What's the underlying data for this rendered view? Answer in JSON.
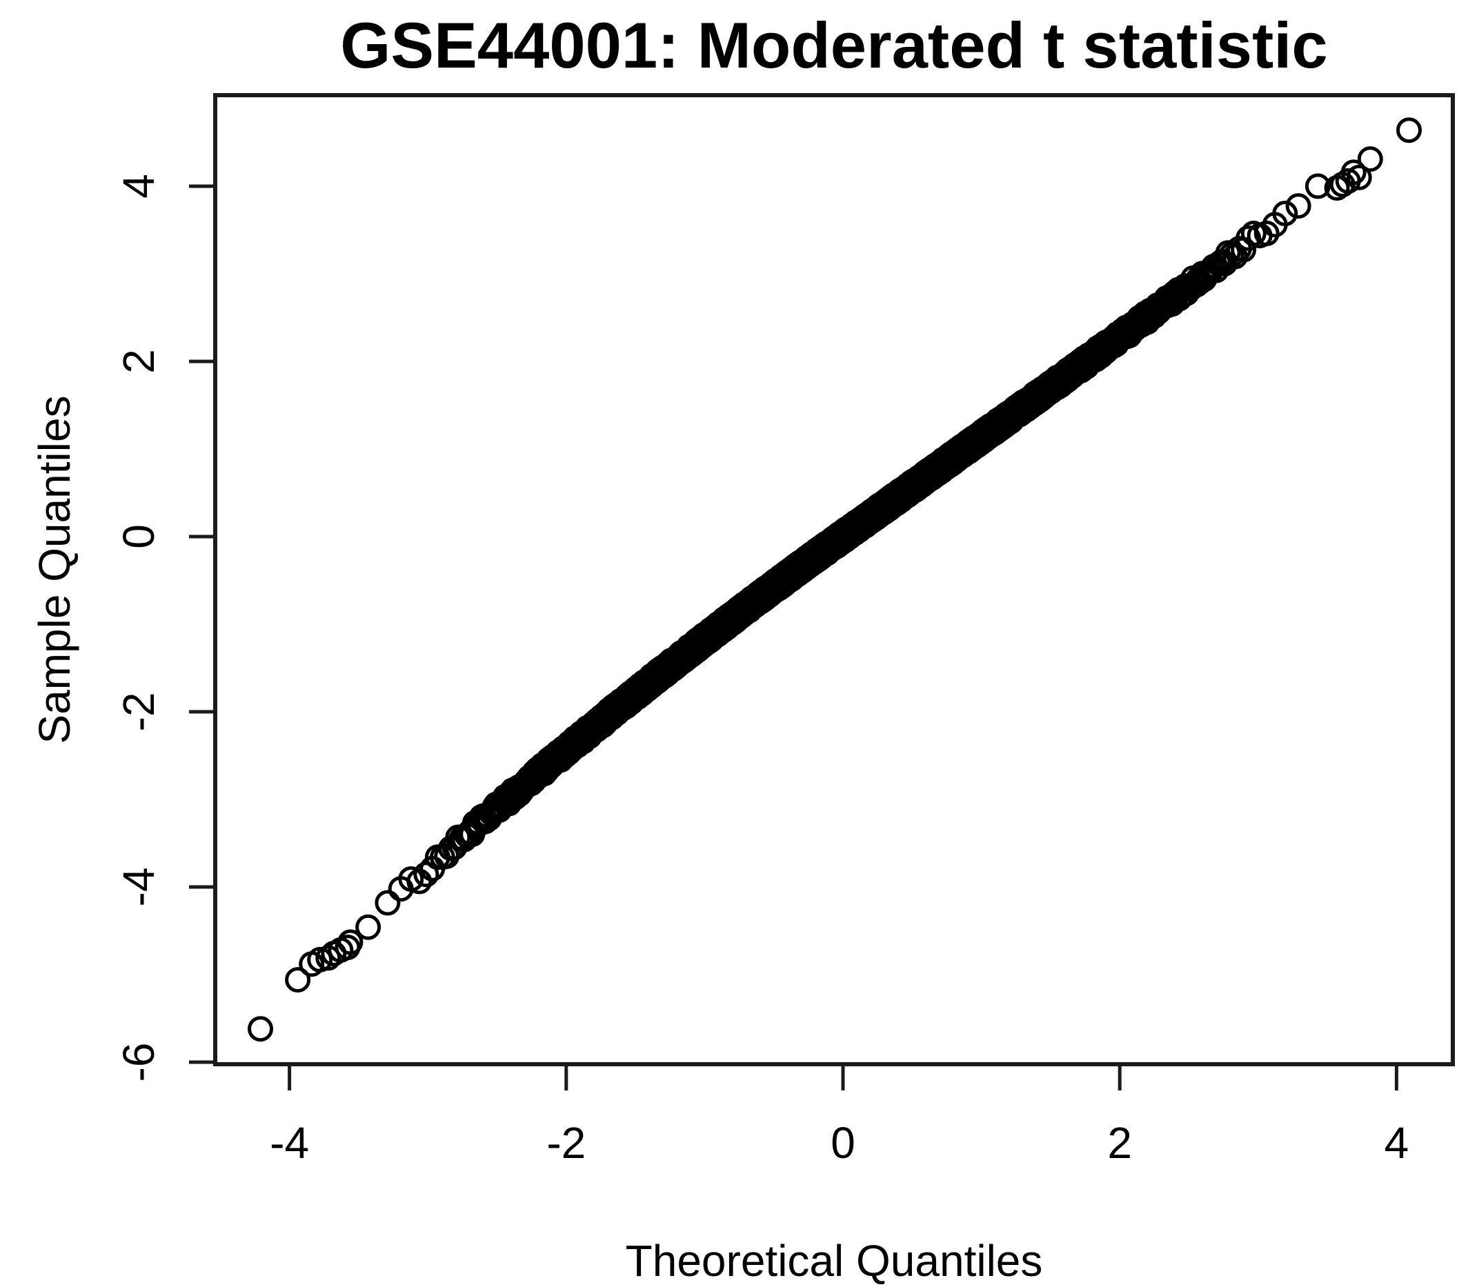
{
  "page": {
    "background": "#ffffff",
    "foreground": "#000000"
  },
  "chart_data": {
    "type": "scatter",
    "subtype": "qqnorm",
    "title": "GSE44001: Moderated t statistic",
    "xlabel": "Theoretical Quantiles",
    "ylabel": "Sample Quantiles",
    "x_ticks": [
      -4,
      -2,
      0,
      2,
      4
    ],
    "y_ticks": [
      4,
      2,
      0,
      -2,
      -4,
      -6
    ],
    "xlim": [
      -4.54,
      4.41
    ],
    "ylim": [
      -6.02,
      5.04
    ],
    "grid": false,
    "legend": null,
    "marker": {
      "shape": "open-circle",
      "color": "#000000",
      "radius_px": 16,
      "stroke_px": 5
    },
    "dense_band": {
      "comment": "thousands of overlapping open circles forming a near-straight QQ line through (0,0)",
      "n_points": 5000,
      "x_cutoff": [
        -3.48,
        3.52
      ],
      "slope": 1.13,
      "neg_quad": -0.045,
      "pos_cubic": 0.002,
      "jitter": 0.06
    },
    "lower_tail_points": [
      [
        -4.21,
        -5.62
      ],
      [
        -3.94,
        -5.06
      ],
      [
        -3.84,
        -4.88
      ],
      [
        -3.78,
        -4.83
      ],
      [
        -3.72,
        -4.81
      ],
      [
        -3.68,
        -4.76
      ],
      [
        -3.63,
        -4.72
      ],
      [
        -3.58,
        -4.69
      ],
      [
        -3.56,
        -4.63
      ]
    ],
    "upper_tail_points": [
      [
        3.57,
        3.98
      ],
      [
        3.61,
        4.02
      ],
      [
        3.65,
        4.06
      ],
      [
        3.69,
        4.16
      ],
      [
        3.73,
        4.1
      ],
      [
        3.81,
        4.31
      ],
      [
        4.09,
        4.64
      ]
    ]
  }
}
